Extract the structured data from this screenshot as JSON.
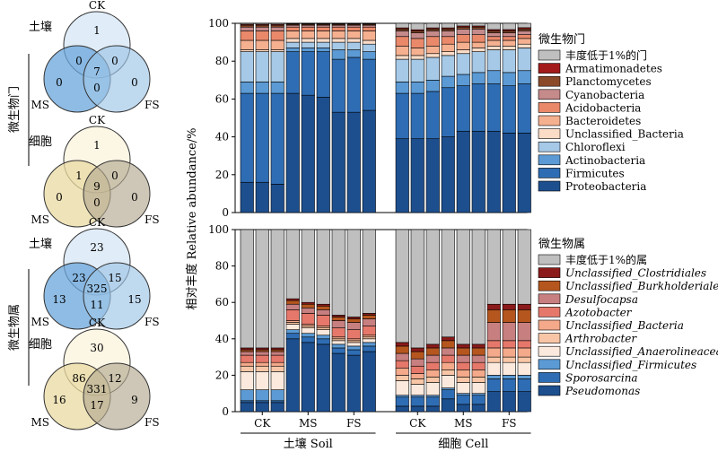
{
  "venn_panels": {
    "side_labels": [
      "微生物门",
      "微生物属"
    ],
    "groups": [
      {
        "title": "土壤",
        "circles": [
          "CK",
          "MS",
          "FS"
        ],
        "counts": {
          "ck_only": "1",
          "ms_only": "0",
          "fs_only": "0",
          "ck_ms": "0",
          "ck_fs": "0",
          "ms_fs": "0",
          "all": "7"
        },
        "colors": {
          "ck": "#dbe9f6",
          "ms": "#6aa6db",
          "fs": "#9cc4e6",
          "stroke": "#333333"
        }
      },
      {
        "title": "细胞",
        "circles": [
          "CK",
          "MS",
          "FS"
        ],
        "counts": {
          "ck_only": "1",
          "ms_only": "0",
          "fs_only": "0",
          "ck_ms": "1",
          "ck_fs": "0",
          "ms_fs": "0",
          "all": "9"
        },
        "colors": {
          "ck": "#fbf5e0",
          "ms": "#ead9a2",
          "fs": "#b4a990",
          "stroke": "#333333"
        }
      },
      {
        "title": "土壤",
        "circles": [
          "CK",
          "MS",
          "FS"
        ],
        "counts": {
          "ck_only": "23",
          "ms_only": "13",
          "fs_only": "15",
          "ck_ms": "23",
          "ck_fs": "15",
          "ms_fs": "11",
          "all": "325"
        },
        "colors": {
          "ck": "#dbe9f6",
          "ms": "#6aa6db",
          "fs": "#9cc4e6",
          "stroke": "#333333"
        }
      },
      {
        "title": "细胞",
        "circles": [
          "CK",
          "MS",
          "FS"
        ],
        "counts": {
          "ck_only": "30",
          "ms_only": "16",
          "fs_only": "9",
          "ck_ms": "86",
          "ck_fs": "12",
          "ms_fs": "17",
          "all": "331"
        },
        "colors": {
          "ck": "#fbf5e0",
          "ms": "#ead9a2",
          "fs": "#b4a990",
          "stroke": "#333333"
        }
      }
    ]
  },
  "chart_data": [
    {
      "type": "bar",
      "stacked": true,
      "legend_title": "微生物门",
      "ylim": [
        0,
        100
      ],
      "yticks": [
        "0",
        "20",
        "40",
        "60",
        "80",
        "100"
      ],
      "ylabel": "相对丰度 Relative abundance/%",
      "series": [
        {
          "name": "Proteobacteria",
          "color": "#1d4f8e",
          "values": [
            16,
            16,
            15,
            63,
            62,
            61,
            53,
            53,
            54,
            39,
            39,
            39,
            40,
            43,
            43,
            43,
            42,
            42
          ]
        },
        {
          "name": "Firmicutes",
          "color": "#2e6db4",
          "values": [
            47,
            47,
            48,
            22,
            23,
            24,
            28,
            29,
            27,
            24,
            24,
            25,
            26,
            24,
            25,
            25,
            25,
            26
          ]
        },
        {
          "name": "Actinobacteria",
          "color": "#5b9ad4",
          "values": [
            6,
            6,
            6,
            2,
            2,
            2,
            5,
            4,
            4,
            6,
            6,
            6,
            6,
            6,
            6,
            7,
            7,
            7
          ]
        },
        {
          "name": "Chloroflexi",
          "color": "#a5c9e7",
          "values": [
            16,
            16,
            16,
            3,
            3,
            3,
            4,
            4,
            4,
            12,
            12,
            12,
            11,
            11,
            11,
            11,
            12,
            12
          ]
        },
        {
          "name": "Unclassified_Bacteria",
          "color": "#fbdcc7",
          "values": [
            1,
            1,
            1,
            2,
            2,
            2,
            2,
            2,
            2,
            2,
            2,
            2,
            2,
            2,
            2,
            2,
            2,
            2
          ]
        },
        {
          "name": "Bacteroidetes",
          "color": "#f5b090",
          "values": [
            5,
            5,
            5,
            4,
            4,
            4,
            4,
            4,
            5,
            5,
            4,
            4,
            4,
            4,
            3,
            3,
            3,
            3
          ]
        },
        {
          "name": "Acidobacteria",
          "color": "#e9896a",
          "values": [
            5,
            5,
            5,
            2,
            2,
            2,
            2,
            2,
            2,
            5,
            5,
            5,
            4,
            4,
            4,
            2,
            2,
            2
          ]
        },
        {
          "name": "Cyanobacteria",
          "color": "#c58a8a",
          "values": [
            2,
            2,
            2,
            1,
            1,
            1,
            1,
            1,
            1,
            3,
            3,
            3,
            3,
            3,
            3,
            2,
            2,
            2
          ]
        },
        {
          "name": "Planctomycetes",
          "color": "#8a4a2a",
          "values": [
            1,
            1,
            1,
            0.5,
            0.5,
            0.5,
            0.5,
            0.5,
            0.5,
            1,
            1,
            1,
            1,
            1,
            1,
            1,
            1,
            1
          ]
        },
        {
          "name": "Armatimonadetes",
          "color": "#a31a1a",
          "values": [
            0.5,
            0.5,
            0.5,
            0.3,
            0.3,
            0.3,
            0.3,
            0.3,
            0.3,
            0.6,
            0.6,
            0.6,
            0.6,
            0.6,
            0.6,
            0.7,
            0.7,
            0.7
          ]
        },
        {
          "name": "丰度低于1%的门",
          "color": "#bfbfbf",
          "values": [
            0.5,
            0.5,
            0.5,
            0.2,
            0.2,
            0.2,
            0.2,
            0.2,
            0.2,
            2.4,
            3.4,
            2.4,
            2.4,
            1.4,
            1.4,
            3.3,
            3.3,
            2.3
          ]
        }
      ]
    },
    {
      "type": "bar",
      "stacked": true,
      "legend_title": "微生物属",
      "ylim": [
        0,
        100
      ],
      "yticks": [
        "0",
        "20",
        "40",
        "60",
        "80",
        "100"
      ],
      "ylabel": "相对丰度 Relative abundance/%",
      "group_labels": [
        "CK",
        "MS",
        "FS",
        "CK",
        "MS",
        "FS"
      ],
      "section_labels": [
        "土壤 Soil",
        "细胞 Cell"
      ],
      "series": [
        {
          "name": "Pseudomonas",
          "color": "#1d4f8e",
          "italic": true,
          "values": [
            5,
            5,
            5,
            40,
            38,
            37,
            32,
            31,
            33,
            3,
            3,
            3,
            7,
            4,
            4,
            11,
            11,
            11
          ]
        },
        {
          "name": "Sporosarcina",
          "color": "#2e6db4",
          "italic": true,
          "values": [
            1,
            1,
            1,
            3,
            3,
            3,
            3,
            3,
            3,
            5,
            5,
            5,
            5,
            5,
            5,
            7,
            7,
            7
          ]
        },
        {
          "name": "Unclassified_Firmicutes",
          "color": "#5b9ad4",
          "italic": true,
          "values": [
            6,
            6,
            6,
            2,
            2,
            2,
            2,
            2,
            2,
            1,
            1,
            1,
            1,
            1,
            1,
            2,
            2,
            2
          ]
        },
        {
          "name": "Unclassified_Anaerolineaceae",
          "color": "#fbe9dd",
          "italic": true,
          "values": [
            10,
            10,
            10,
            3,
            3,
            3,
            2,
            2,
            2,
            8,
            6,
            7,
            7,
            6,
            6,
            7,
            7,
            7
          ]
        },
        {
          "name": "Arthrobacter",
          "color": "#f8c6a6",
          "italic": true,
          "values": [
            3,
            3,
            3,
            1,
            1,
            1,
            1,
            1,
            1,
            3,
            3,
            3,
            3,
            3,
            3,
            3,
            3,
            3
          ]
        },
        {
          "name": "Unclassified_Bacteria",
          "color": "#f3a98a",
          "italic": true,
          "values": [
            2,
            2,
            2,
            1,
            1,
            1,
            1,
            1,
            1,
            4,
            3,
            4,
            4,
            4,
            4,
            5,
            5,
            5
          ]
        },
        {
          "name": "Azotobacter",
          "color": "#e5786a",
          "italic": true,
          "values": [
            4,
            4,
            4,
            6,
            6,
            6,
            5,
            5,
            5,
            4,
            4,
            4,
            4,
            4,
            4,
            4,
            4,
            4
          ]
        },
        {
          "name": "Desulfocapsa",
          "color": "#c77f7f",
          "italic": true,
          "values": [
            2,
            2,
            2,
            3,
            3,
            3,
            4,
            4,
            4,
            4,
            4,
            4,
            4,
            4,
            4,
            10,
            10,
            10
          ]
        },
        {
          "name": "Unclassified_Burkholderiales",
          "color": "#b5561e",
          "italic": true,
          "values": [
            1,
            1,
            1,
            2,
            2,
            2,
            2,
            2,
            2,
            4,
            4,
            4,
            4,
            4,
            4,
            7,
            7,
            7
          ]
        },
        {
          "name": "Unclassified_Clostridiales",
          "color": "#8b1a1a",
          "italic": true,
          "values": [
            1,
            1,
            1,
            1,
            1,
            1,
            1,
            1,
            1,
            2,
            2,
            2,
            2,
            2,
            2,
            3,
            3,
            3
          ]
        },
        {
          "name": "丰度低于1%的属",
          "color": "#bfbfbf",
          "values": [
            65,
            65,
            65,
            38,
            40,
            41,
            47,
            48,
            46,
            62,
            65,
            63,
            59,
            63,
            63,
            41,
            41,
            41
          ]
        }
      ]
    }
  ]
}
